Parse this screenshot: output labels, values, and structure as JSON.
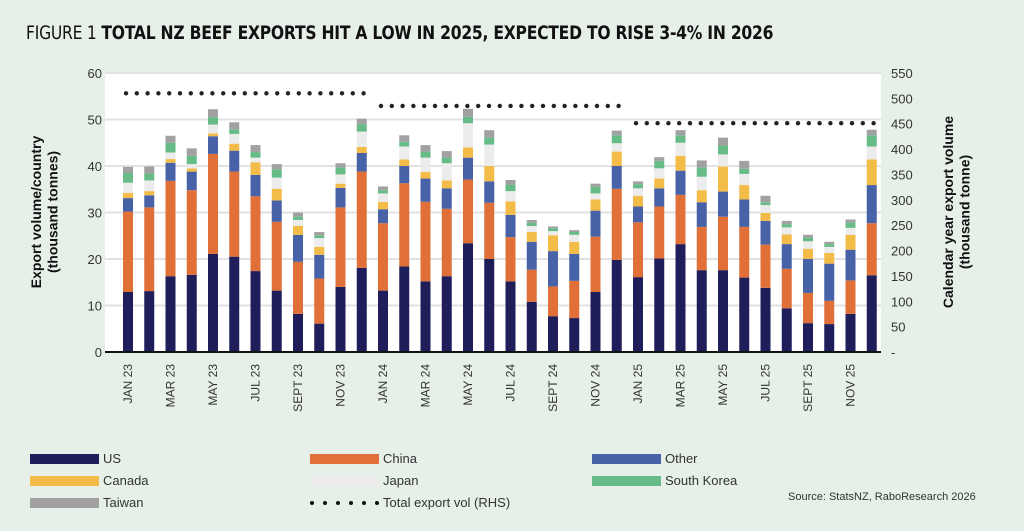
{
  "title": {
    "prefix": "FIGURE 1",
    "main": "TOTAL NZ BEEF EXPORTS HIT A LOW IN 2025, EXPECTED TO RISE 3-4% IN 2026"
  },
  "source": "Source: StatsNZ, RaboResearch 2026",
  "chart_data": {
    "type": "bar",
    "stacked": true,
    "title": "TOTAL NZ BEEF EXPORTS HIT A LOW IN 2025, EXPECTED TO RISE 3-4% IN 2026",
    "ylabel": "Export volume/country (thousand tonnes)",
    "y2label": "Calendar year export volume (thousand tonne)",
    "ylim": [
      0,
      60
    ],
    "y2lim": [
      0,
      550
    ],
    "yticks": [
      "0",
      "10",
      "20",
      "30",
      "40",
      "50",
      "60"
    ],
    "y2ticks": [
      "-",
      "50",
      "100",
      "150",
      "200",
      "250",
      "300",
      "350",
      "400",
      "450",
      "500",
      "550"
    ],
    "grid": true,
    "legend_position": "bottom",
    "categories": [
      "Jan 23",
      "Feb 23",
      "Mar 23",
      "Apr 23",
      "May 23",
      "Jun 23",
      "Jul 23",
      "Aug 23",
      "Sep 23",
      "Oct 23",
      "Nov 23",
      "Dec 23",
      "Jan 24",
      "Feb 24",
      "Mar 24",
      "Apr 24",
      "May 24",
      "Jun 24",
      "Jul 24",
      "Aug 24",
      "Sep 24",
      "Oct 24",
      "Nov 24",
      "Dec 24",
      "Jan 25",
      "Feb 25",
      "Mar 25",
      "Apr 25",
      "May 25",
      "Jun 25",
      "Jul 25",
      "Aug 25",
      "Sep 25",
      "Oct 25",
      "Nov 25",
      "Dec 25"
    ],
    "xtick_labels": [
      "JAN 23",
      "MAR 23",
      "MAY 23",
      "JUL 23",
      "SEPT 23",
      "NOV 23",
      "JAN 24",
      "MAR 24",
      "MAY 24",
      "JUL 24",
      "SEPT 24",
      "NOV 24",
      "JAN 25",
      "MAR 25",
      "MAY 25",
      "JUL 25",
      "SEPT 25",
      "NOV 25"
    ],
    "series": [
      {
        "name": "US",
        "color": "#1f1d5a",
        "values": [
          12.9,
          13.1,
          16.3,
          16.6,
          21.1,
          20.5,
          17.4,
          13.2,
          8.2,
          6.1,
          14.0,
          18.1,
          13.2,
          18.4,
          15.2,
          16.3,
          23.4,
          20.0,
          15.2,
          10.8,
          7.7,
          7.3,
          12.9,
          19.8,
          16.1,
          20.1,
          23.2,
          17.6,
          17.6,
          16.0,
          13.8,
          9.4,
          6.2,
          6.0,
          8.2,
          16.5
        ]
      },
      {
        "name": "China",
        "color": "#e07038",
        "values": [
          17.3,
          18.0,
          20.5,
          18.2,
          21.5,
          18.3,
          16.1,
          14.8,
          11.2,
          9.7,
          17.1,
          20.7,
          14.5,
          17.9,
          17.1,
          14.5,
          13.7,
          12.1,
          9.5,
          6.9,
          6.4,
          8.0,
          11.9,
          15.3,
          11.8,
          11.2,
          10.6,
          9.3,
          11.5,
          10.9,
          9.3,
          8.5,
          6.5,
          5.0,
          7.2,
          11.2
        ]
      },
      {
        "name": "Other",
        "color": "#4862a8",
        "values": [
          2.9,
          2.6,
          3.9,
          4.0,
          3.8,
          4.5,
          4.6,
          4.6,
          5.8,
          5.1,
          4.2,
          4.0,
          3.0,
          3.7,
          5.0,
          4.4,
          4.7,
          4.6,
          4.8,
          6.0,
          7.6,
          5.8,
          5.6,
          4.9,
          3.4,
          3.9,
          5.2,
          5.3,
          5.4,
          5.9,
          5.1,
          5.3,
          7.3,
          8.0,
          6.6,
          8.2
        ]
      },
      {
        "name": "Canada",
        "color": "#f3bb48",
        "values": [
          1.1,
          0.9,
          0.8,
          0.7,
          0.6,
          1.5,
          2.7,
          2.5,
          1.9,
          1.7,
          0.9,
          1.3,
          1.6,
          1.4,
          1.4,
          1.7,
          2.2,
          3.3,
          2.9,
          2.1,
          3.4,
          2.6,
          2.4,
          3.1,
          2.3,
          2.1,
          3.2,
          2.6,
          5.4,
          3.1,
          1.7,
          2.1,
          2.2,
          2.3,
          3.2,
          5.5
        ]
      },
      {
        "name": "Japan",
        "color": "#ececec",
        "values": [
          2.2,
          2.3,
          1.4,
          0.9,
          1.9,
          2.1,
          1.0,
          2.4,
          1.3,
          1.9,
          2.0,
          3.3,
          1.8,
          2.8,
          3.1,
          3.7,
          5.2,
          4.6,
          2.2,
          1.3,
          0.9,
          1.5,
          1.3,
          1.8,
          1.6,
          2.2,
          2.8,
          2.9,
          2.6,
          2.4,
          1.7,
          1.5,
          1.6,
          1.3,
          1.5,
          2.8
        ]
      },
      {
        "name": "South Korea",
        "color": "#66bb87",
        "values": [
          2.1,
          1.5,
          2.1,
          1.8,
          1.6,
          1.0,
          1.2,
          1.8,
          0.7,
          0.6,
          1.5,
          1.6,
          0.7,
          1.0,
          1.3,
          1.2,
          1.4,
          1.5,
          1.4,
          0.7,
          0.6,
          0.6,
          1.4,
          1.7,
          0.9,
          1.6,
          1.6,
          2.0,
          1.9,
          1.1,
          0.6,
          0.7,
          0.8,
          0.6,
          1.2,
          2.4
        ]
      },
      {
        "name": "Taiwan",
        "color": "#a1a1a1",
        "values": [
          1.3,
          1.5,
          1.5,
          1.6,
          1.7,
          1.5,
          1.5,
          1.1,
          0.9,
          0.7,
          0.9,
          1.2,
          0.8,
          1.4,
          1.4,
          1.4,
          1.7,
          1.6,
          1.0,
          0.6,
          0.4,
          0.4,
          0.7,
          1.0,
          0.6,
          0.8,
          1.1,
          1.5,
          1.7,
          1.7,
          1.4,
          0.7,
          0.6,
          0.5,
          0.6,
          1.2
        ]
      }
    ],
    "line_series": {
      "name": "Total export vol (RHS)",
      "axis": "right",
      "style": "dotted",
      "color": "#222222",
      "segments": [
        {
          "year": "2023",
          "from": "Jan 23",
          "to": "Dec 23",
          "value": 510
        },
        {
          "year": "2024",
          "from": "Jan 24",
          "to": "Dec 24",
          "value": 485
        },
        {
          "year": "2025",
          "from": "Jan 25",
          "to": "Dec 25",
          "value": 451
        }
      ]
    }
  },
  "legend": [
    {
      "label": "US",
      "color": "#1f1d5a",
      "kind": "swatch"
    },
    {
      "label": "China",
      "color": "#e07038",
      "kind": "swatch"
    },
    {
      "label": "Other",
      "color": "#4862a8",
      "kind": "swatch"
    },
    {
      "label": "Canada",
      "color": "#f3bb48",
      "kind": "swatch"
    },
    {
      "label": "Japan",
      "color": "#ececec",
      "kind": "swatch"
    },
    {
      "label": "South Korea",
      "color": "#66bb87",
      "kind": "swatch"
    },
    {
      "label": "Taiwan",
      "color": "#a1a1a1",
      "kind": "swatch"
    },
    {
      "label": "Total export vol (RHS)",
      "color": "#111111",
      "kind": "dots"
    }
  ]
}
